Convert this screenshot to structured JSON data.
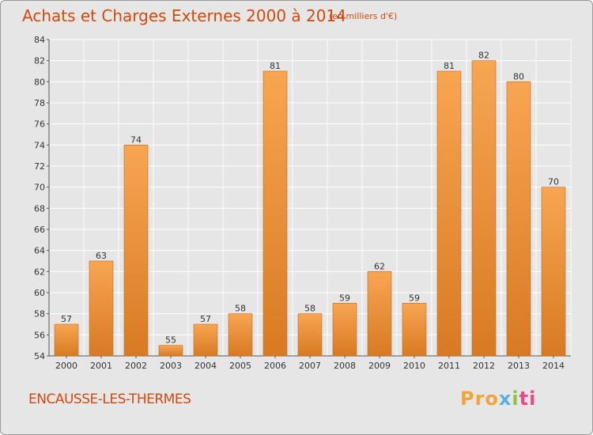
{
  "title": "Achats et Charges Externes 2000 à 2014",
  "unit": "(en milliers d'€)",
  "town": "ENCAUSSE-LES-THERMES",
  "logo": {
    "text": "Proxiti",
    "colors": [
      "#f0a43a",
      "#5bb0e0",
      "#8cc63f",
      "#e94b8a"
    ]
  },
  "colors": {
    "bar_light": "#f8a552",
    "bar_dark": "#d87a23",
    "title": "#d04a0c",
    "grid": "#ffffff",
    "plot_bg": "#e6e6e6"
  },
  "chart_data": {
    "type": "bar",
    "title": "Achats et Charges Externes 2000 à 2014",
    "xlabel": "",
    "ylabel": "",
    "categories": [
      "2000",
      "2001",
      "2002",
      "2003",
      "2004",
      "2005",
      "2006",
      "2007",
      "2008",
      "2009",
      "2010",
      "2011",
      "2012",
      "2013",
      "2014"
    ],
    "values": [
      57,
      63,
      74,
      55,
      57,
      58,
      81,
      58,
      59,
      62,
      59,
      81,
      82,
      80,
      70
    ],
    "ylim": [
      54,
      84
    ],
    "yticks": [
      54,
      56,
      58,
      60,
      62,
      64,
      66,
      68,
      70,
      72,
      74,
      76,
      78,
      80,
      82,
      84
    ],
    "grid": true,
    "data_labels": true
  }
}
